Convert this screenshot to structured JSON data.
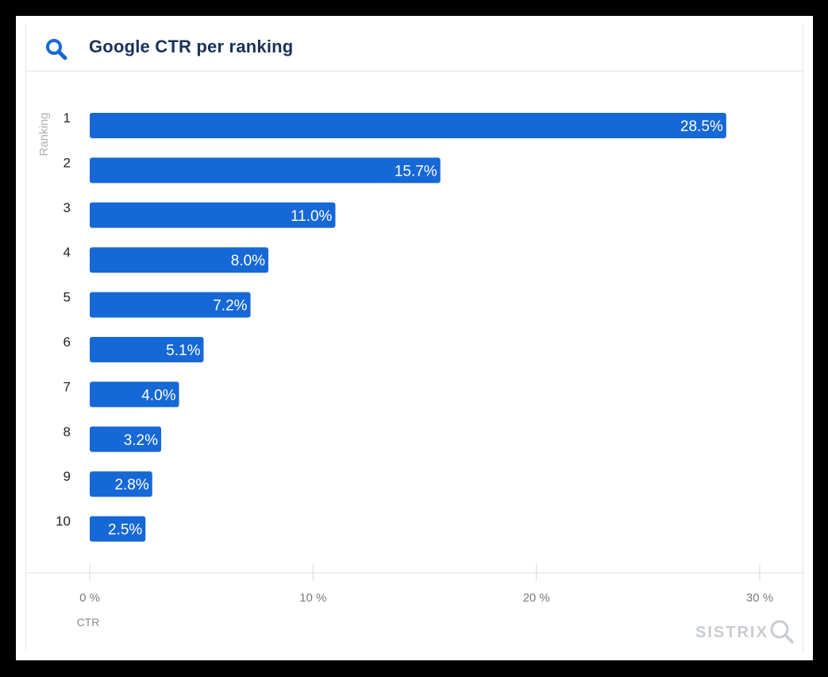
{
  "header": {
    "title": "Google CTR per ranking",
    "icon": "search-icon"
  },
  "brand": {
    "name": "SISTRIX",
    "icon": "magnifier-icon"
  },
  "colors": {
    "bar": "#1668d6",
    "title": "#17325c",
    "icon": "#1668d6",
    "axis_text": "#7a7a7a"
  },
  "chart_data": {
    "type": "bar",
    "orientation": "horizontal",
    "title": "Google CTR per ranking",
    "xlabel": "CTR",
    "ylabel": "Ranking",
    "categories": [
      "1",
      "2",
      "3",
      "4",
      "5",
      "6",
      "7",
      "8",
      "9",
      "10"
    ],
    "values": [
      28.5,
      15.7,
      11.0,
      8.0,
      7.2,
      5.1,
      4.0,
      3.2,
      2.8,
      2.5
    ],
    "data_labels": [
      "28.5%",
      "15.7%",
      "11.0%",
      "8.0%",
      "7.2%",
      "5.1%",
      "4.0%",
      "3.2%",
      "2.8%",
      "2.5%"
    ],
    "xticks": [
      0,
      10,
      20,
      30
    ],
    "xtick_labels": [
      "0 %",
      "10 %",
      "20 %",
      "30 %"
    ],
    "xlim": [
      0,
      30
    ],
    "grid": false,
    "legend": "none"
  }
}
